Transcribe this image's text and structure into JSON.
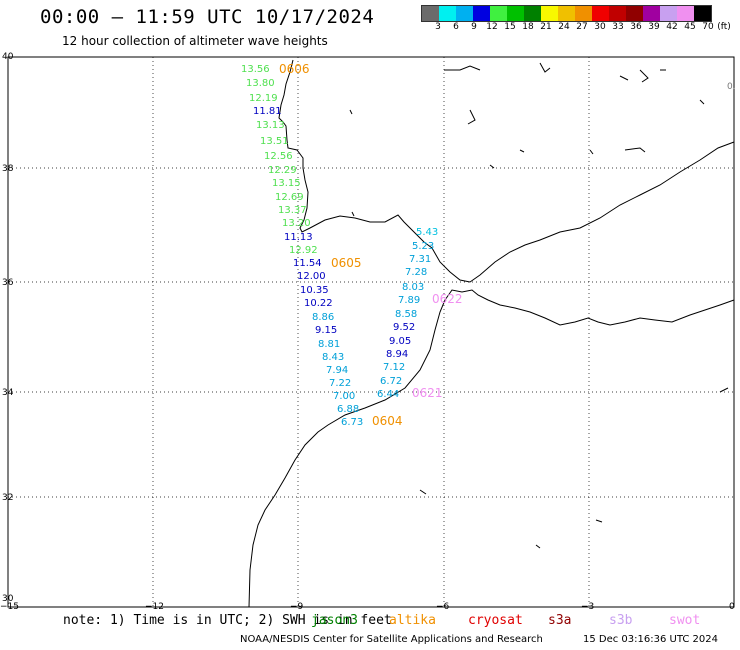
{
  "header": {
    "title": "00:00 – 11:59 UTC 10/17/2024",
    "subtitle": "12 hour collection of altimeter wave heights"
  },
  "colorbar": {
    "colors": [
      "#6b6b6b",
      "#00f0f0",
      "#00b0f0",
      "#0000e0",
      "#40f040",
      "#00c000",
      "#008000",
      "#f8f800",
      "#f0c000",
      "#f09000",
      "#f00000",
      "#c00000",
      "#900000",
      "#a000a0",
      "#c8a0f0",
      "#f090f0",
      "#000000"
    ],
    "labels": [
      "3",
      "6",
      "9",
      "12",
      "15",
      "18",
      "21",
      "24",
      "27",
      "30",
      "33",
      "36",
      "39",
      "42",
      "45",
      "70",
      "(ft)"
    ]
  },
  "axes": {
    "x_ticks": [
      "−15",
      "−12",
      "−9",
      "−6",
      "−3",
      "0"
    ],
    "y_ticks": [
      "40",
      "38",
      "36",
      "34",
      "32",
      "30"
    ]
  },
  "passes": [
    {
      "label": "0606",
      "color": "#f09000"
    },
    {
      "label": "0605",
      "color": "#f09000"
    },
    {
      "label": "0604",
      "color": "#f09000"
    },
    {
      "label": "0622",
      "color": "#f090f0"
    },
    {
      "label": "0621",
      "color": "#f090f0"
    }
  ],
  "track_green": {
    "color": "#50e050",
    "values": [
      "13.56",
      "13.80",
      "12.19",
      "11.81",
      "13.13",
      "13.51",
      "12.56",
      "12.29",
      "13.15",
      "12.69",
      "13.37",
      "13.20",
      "11.13",
      "12.92",
      "11.54",
      "12.00",
      "10.35",
      "10.22",
      "8.86",
      "9.15",
      "8.81",
      "8.43",
      "7.94",
      "7.22",
      "7.00",
      "6.88",
      "6.73"
    ]
  },
  "track_cyan": {
    "values": [
      "5.43",
      "5.23",
      "7.31",
      "7.28",
      "8.03",
      "7.89",
      "8.58",
      "9.52",
      "9.05",
      "8.94",
      "7.12",
      "6.72",
      "6.44"
    ]
  },
  "corner_label": "0.",
  "footer": {
    "note": "note:  1) Time is in UTC;  2) SWH is in feet",
    "legend": [
      {
        "label": "jason3",
        "color": "#008000"
      },
      {
        "label": "altika",
        "color": "#f09000"
      },
      {
        "label": "cryosat",
        "color": "#e00000"
      },
      {
        "label": "s3a",
        "color": "#900000"
      },
      {
        "label": "s3b",
        "color": "#c8a0f0"
      },
      {
        "label": "swot",
        "color": "#f090f0"
      }
    ],
    "credit": "NOAA/NESDIS Center for Satellite Applications and Research",
    "timestamp": "15 Dec 03:16:36 UTC 2024"
  }
}
